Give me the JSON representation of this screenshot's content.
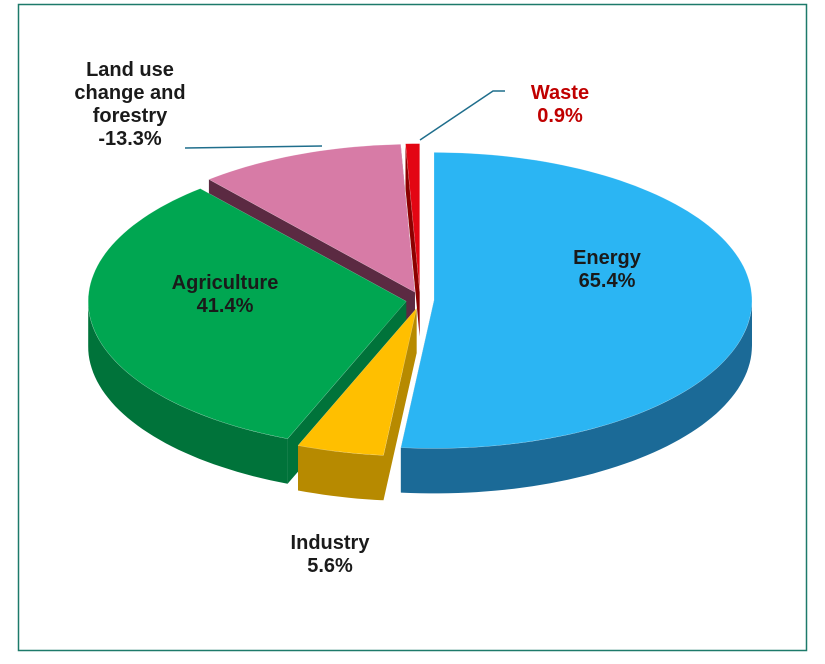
{
  "chart_data": {
    "type": "pie3d",
    "categories": [
      "Energy",
      "Industry",
      "Agriculture",
      "Land use change and forestry",
      "Waste"
    ],
    "values": [
      65.4,
      5.6,
      41.4,
      -13.3,
      0.9
    ],
    "value_labels": [
      "65.4%",
      "5.6%",
      "41.4%",
      "-13.3%",
      "0.9%"
    ],
    "colors": [
      "#2bb5f3",
      "#ffbf00",
      "#00a651",
      "#d77ba6",
      "#e30613"
    ],
    "side_colors": [
      "#1b6a97",
      "#b78a00",
      "#00733a",
      "#5b2a42",
      "#8c0000"
    ],
    "label_colors": [
      "#1a1a1a",
      "#1a1a1a",
      "#1a1a1a",
      "#1a1a1a",
      "#c00000"
    ]
  }
}
